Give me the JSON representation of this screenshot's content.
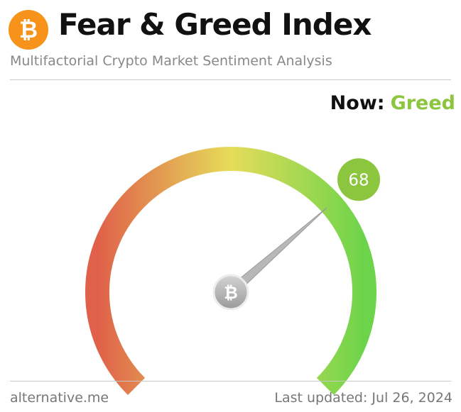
{
  "header": {
    "logo_glyph": "₿",
    "title": "Fear & Greed Index",
    "subtitle": "Multifactorial Crypto Market Sentiment Analysis"
  },
  "status": {
    "now_label": "Now:",
    "now_value": "Greed",
    "value_color": "#8cc63f"
  },
  "gauge": {
    "value": 68,
    "value_text": "68",
    "max": 100,
    "hub_glyph": "₿",
    "colors": {
      "fear": "#e0604a",
      "neutral": "#e6dc5a",
      "greed": "#6cd44a"
    }
  },
  "footer": {
    "source": "alternative.me",
    "updated": "Last updated: Jul 26, 2024"
  }
}
